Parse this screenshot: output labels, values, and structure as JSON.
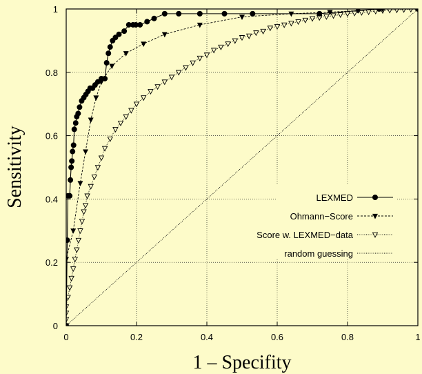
{
  "chart_data": {
    "type": "line",
    "xlabel": "1 – Specifity",
    "ylabel": "Sensitivity",
    "xlim": [
      0,
      1
    ],
    "ylim": [
      0,
      1
    ],
    "x_ticks": [
      "0",
      "0.2",
      "0.4",
      "0.6",
      "0.8",
      "1"
    ],
    "y_ticks": [
      "0",
      "0.2",
      "0.4",
      "0.6",
      "0.8",
      "1"
    ],
    "grid": true,
    "legend_position": "bottom-right",
    "series": [
      {
        "name": "LEXMED",
        "marker": "filled-circle",
        "line_style": "solid",
        "color": "#000000",
        "points": [
          [
            0,
            0
          ],
          [
            0.003,
            0.27
          ],
          [
            0.005,
            0.41
          ],
          [
            0.01,
            0.41
          ],
          [
            0.012,
            0.46
          ],
          [
            0.014,
            0.5
          ],
          [
            0.016,
            0.52
          ],
          [
            0.018,
            0.55
          ],
          [
            0.021,
            0.57
          ],
          [
            0.023,
            0.62
          ],
          [
            0.027,
            0.64
          ],
          [
            0.03,
            0.66
          ],
          [
            0.034,
            0.67
          ],
          [
            0.038,
            0.69
          ],
          [
            0.044,
            0.71
          ],
          [
            0.05,
            0.72
          ],
          [
            0.056,
            0.73
          ],
          [
            0.062,
            0.74
          ],
          [
            0.068,
            0.75
          ],
          [
            0.075,
            0.75
          ],
          [
            0.082,
            0.76
          ],
          [
            0.09,
            0.77
          ],
          [
            0.1,
            0.78
          ],
          [
            0.11,
            0.78
          ],
          [
            0.115,
            0.83
          ],
          [
            0.12,
            0.86
          ],
          [
            0.125,
            0.88
          ],
          [
            0.132,
            0.9
          ],
          [
            0.14,
            0.91
          ],
          [
            0.15,
            0.92
          ],
          [
            0.165,
            0.93
          ],
          [
            0.178,
            0.95
          ],
          [
            0.19,
            0.95
          ],
          [
            0.198,
            0.95
          ],
          [
            0.21,
            0.95
          ],
          [
            0.23,
            0.96
          ],
          [
            0.25,
            0.97
          ],
          [
            0.28,
            0.985
          ],
          [
            0.32,
            0.985
          ],
          [
            0.38,
            0.985
          ],
          [
            0.45,
            0.985
          ],
          [
            0.53,
            0.985
          ],
          [
            0.72,
            0.985
          ],
          [
            0.89,
            1.0
          ],
          [
            1.0,
            1.0
          ]
        ]
      },
      {
        "name": "Ohmann−Score",
        "marker": "filled-triangle-down",
        "line_style": "dashed",
        "color": "#000000",
        "points": [
          [
            0,
            0
          ],
          [
            0,
            0.21
          ],
          [
            0.02,
            0.3
          ],
          [
            0.04,
            0.45
          ],
          [
            0.055,
            0.55
          ],
          [
            0.07,
            0.65
          ],
          [
            0.085,
            0.72
          ],
          [
            0.1,
            0.77
          ],
          [
            0.13,
            0.82
          ],
          [
            0.17,
            0.86
          ],
          [
            0.22,
            0.89
          ],
          [
            0.28,
            0.92
          ],
          [
            0.38,
            0.95
          ],
          [
            0.5,
            0.975
          ],
          [
            0.64,
            0.985
          ],
          [
            0.75,
            0.99
          ],
          [
            0.83,
            0.995
          ],
          [
            0.9,
            1.0
          ],
          [
            1.0,
            1.0
          ]
        ]
      },
      {
        "name": "Score w. LEXMED−data",
        "marker": "open-triangle-down",
        "line_style": "dotted",
        "color": "#000000",
        "points": [
          [
            0,
            0
          ],
          [
            0.0,
            0.02
          ],
          [
            0.0,
            0.04
          ],
          [
            0.0,
            0.06
          ],
          [
            0.005,
            0.09
          ],
          [
            0.01,
            0.12
          ],
          [
            0.015,
            0.15
          ],
          [
            0.02,
            0.18
          ],
          [
            0.025,
            0.21
          ],
          [
            0.03,
            0.24
          ],
          [
            0.035,
            0.27
          ],
          [
            0.04,
            0.3
          ],
          [
            0.045,
            0.33
          ],
          [
            0.05,
            0.36
          ],
          [
            0.055,
            0.38
          ],
          [
            0.06,
            0.41
          ],
          [
            0.07,
            0.44
          ],
          [
            0.08,
            0.47
          ],
          [
            0.09,
            0.5
          ],
          [
            0.1,
            0.53
          ],
          [
            0.11,
            0.56
          ],
          [
            0.125,
            0.59
          ],
          [
            0.14,
            0.62
          ],
          [
            0.155,
            0.64
          ],
          [
            0.17,
            0.66
          ],
          [
            0.185,
            0.68
          ],
          [
            0.2,
            0.7
          ],
          [
            0.22,
            0.72
          ],
          [
            0.24,
            0.74
          ],
          [
            0.26,
            0.755
          ],
          [
            0.28,
            0.77
          ],
          [
            0.3,
            0.785
          ],
          [
            0.32,
            0.8
          ],
          [
            0.34,
            0.815
          ],
          [
            0.36,
            0.83
          ],
          [
            0.38,
            0.845
          ],
          [
            0.4,
            0.855
          ],
          [
            0.42,
            0.87
          ],
          [
            0.44,
            0.88
          ],
          [
            0.46,
            0.89
          ],
          [
            0.48,
            0.9
          ],
          [
            0.5,
            0.91
          ],
          [
            0.52,
            0.915
          ],
          [
            0.54,
            0.925
          ],
          [
            0.56,
            0.93
          ],
          [
            0.58,
            0.94
          ],
          [
            0.6,
            0.945
          ],
          [
            0.62,
            0.95
          ],
          [
            0.64,
            0.955
          ],
          [
            0.66,
            0.96
          ],
          [
            0.68,
            0.965
          ],
          [
            0.7,
            0.97
          ],
          [
            0.72,
            0.973
          ],
          [
            0.74,
            0.976
          ],
          [
            0.76,
            0.979
          ],
          [
            0.78,
            0.982
          ],
          [
            0.8,
            0.985
          ],
          [
            0.82,
            0.987
          ],
          [
            0.84,
            0.989
          ],
          [
            0.86,
            0.991
          ],
          [
            0.88,
            0.993
          ],
          [
            0.9,
            0.995
          ],
          [
            0.92,
            0.996
          ],
          [
            0.94,
            0.997
          ],
          [
            0.96,
            0.998
          ],
          [
            0.98,
            0.999
          ],
          [
            1.0,
            1.0
          ]
        ]
      },
      {
        "name": "random guessing",
        "marker": "none",
        "line_style": "dotted",
        "color": "#000000",
        "points": [
          [
            0,
            0
          ],
          [
            1,
            1
          ]
        ]
      }
    ]
  }
}
